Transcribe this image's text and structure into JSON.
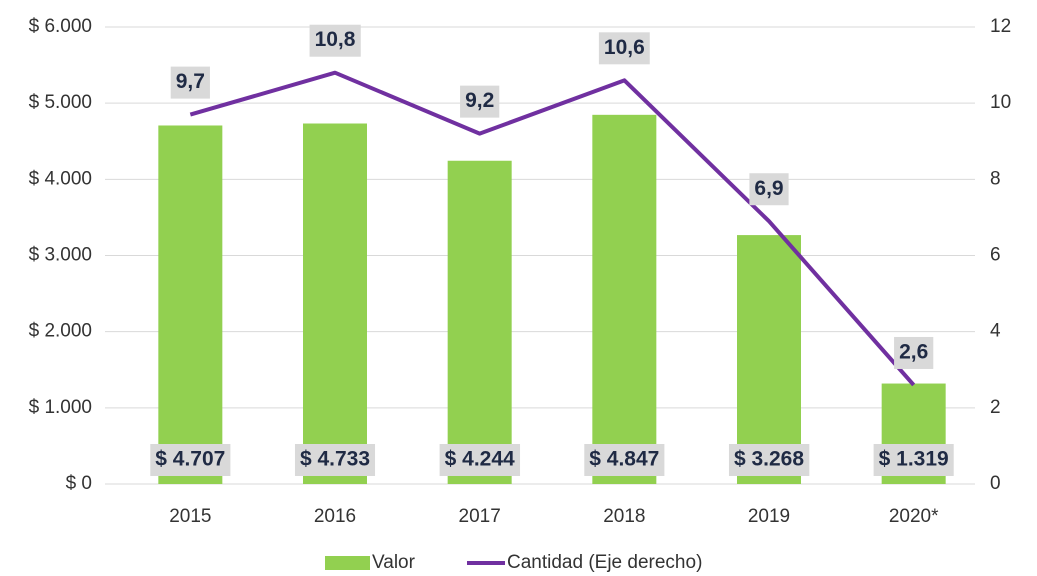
{
  "chart_data": {
    "type": "bar",
    "categories": [
      "2015",
      "2016",
      "2017",
      "2018",
      "2019",
      "2020*"
    ],
    "series": [
      {
        "name": "Valor",
        "type": "bar",
        "color": "#92d050",
        "values": [
          4707,
          4733,
          4244,
          4847,
          3268,
          1319
        ],
        "value_labels": [
          "$ 4.707",
          "$ 4.733",
          "$ 4.244",
          "$ 4.847",
          "$ 3.268",
          "$ 1.319"
        ]
      },
      {
        "name": "Cantidad (Eje derecho)",
        "type": "line",
        "axis": "y2",
        "color": "#7030a0",
        "values": [
          9.7,
          10.8,
          9.2,
          10.6,
          6.9,
          2.6
        ],
        "value_labels": [
          "9,7",
          "10,8",
          "9,2",
          "10,6",
          "6,9",
          "2,6"
        ]
      }
    ],
    "ylim": [
      0,
      6000
    ],
    "yticks": [
      {
        "value": 0,
        "label": "$ 0"
      },
      {
        "value": 1000,
        "label": "$ 1.000"
      },
      {
        "value": 2000,
        "label": "$ 2.000"
      },
      {
        "value": 3000,
        "label": "$ 3.000"
      },
      {
        "value": 4000,
        "label": "$ 4.000"
      },
      {
        "value": 5000,
        "label": "$ 5.000"
      },
      {
        "value": 6000,
        "label": "$ 6.000"
      }
    ],
    "y2lim": [
      0,
      12
    ],
    "y2ticks": [
      0,
      2,
      4,
      6,
      8,
      10,
      12
    ],
    "grid": true,
    "legend": "bottom"
  }
}
